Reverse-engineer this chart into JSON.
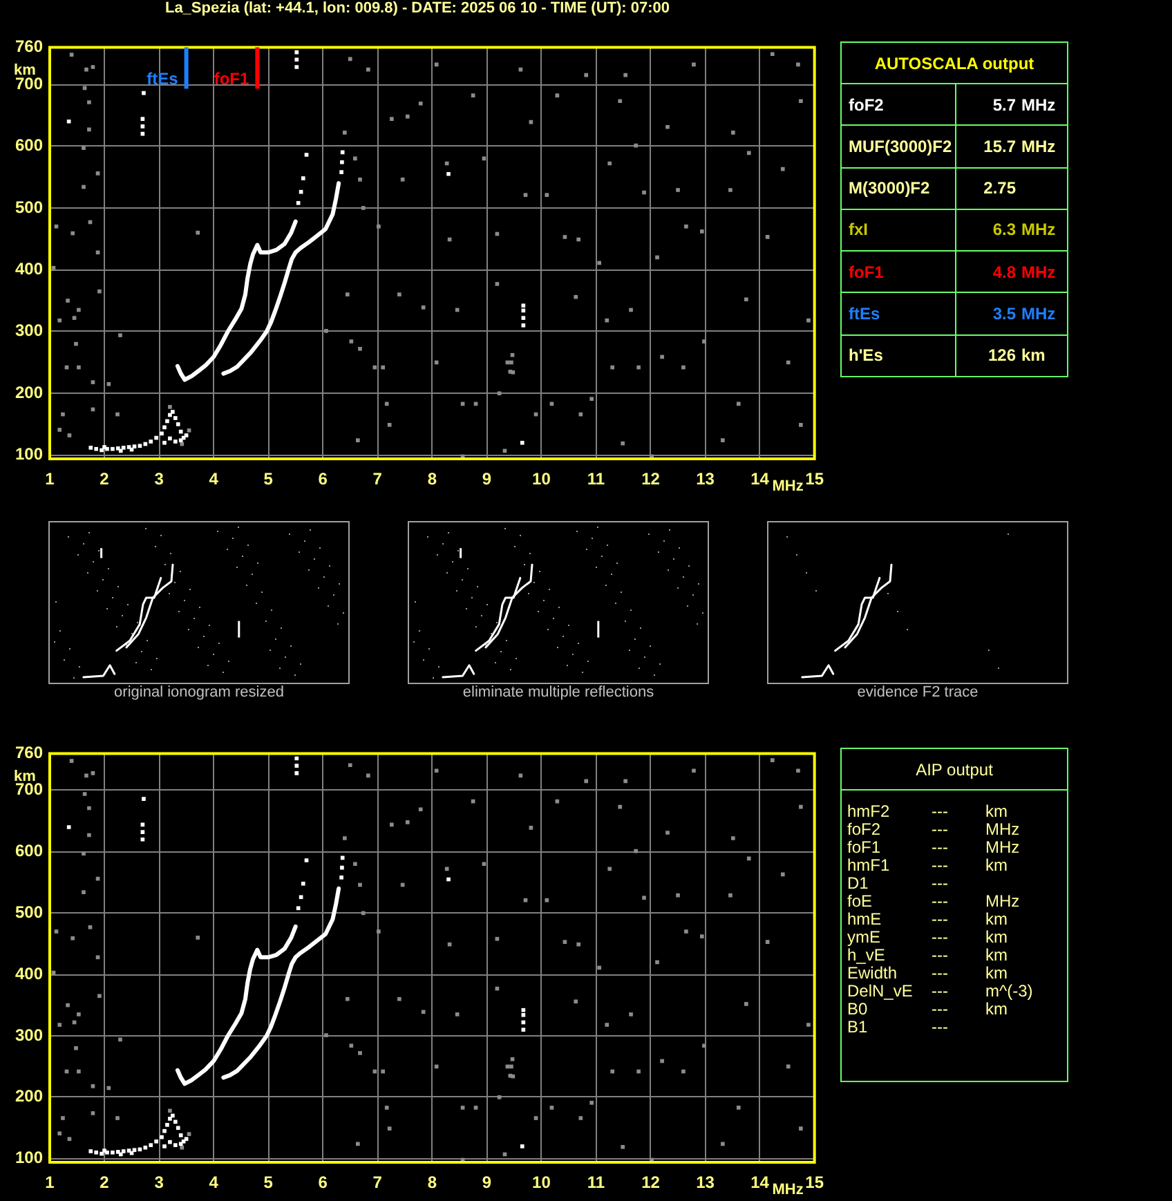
{
  "chart_data": [
    {
      "type": "scatter",
      "title": "La_Spezia (lat: +44.1, lon: 009.8) - DATE: 2025 06 10 - TIME (UT): 07:00",
      "xlabel": "MHz",
      "ylabel": "km",
      "xlim": [
        1,
        15
      ],
      "ylim": [
        94,
        760
      ],
      "xticks": [
        1,
        2,
        3,
        4,
        5,
        6,
        7,
        8,
        9,
        10,
        11,
        12,
        13,
        14,
        15
      ],
      "yticks": [
        100,
        200,
        300,
        400,
        500,
        600,
        700,
        760
      ],
      "grid": true,
      "marker": "square",
      "ref_lines": [
        {
          "axis": "x",
          "value": 3.5,
          "label": "ftEs",
          "color": "#1e7fff"
        },
        {
          "axis": "x",
          "value": 4.8,
          "label": "foF1",
          "color": "#ff0000"
        }
      ],
      "series": [
        {
          "type": "line",
          "marker": "none",
          "color": "#ffffff",
          "x": [
            3.34,
            3.4,
            3.47,
            3.6,
            3.72,
            3.85,
            4.0,
            4.13,
            4.26,
            4.4,
            4.51,
            4.58,
            4.62,
            4.67,
            4.72,
            4.8,
            4.86,
            5.0,
            5.15,
            5.3,
            5.42,
            5.5
          ],
          "values": [
            244,
            232,
            222,
            228,
            236,
            245,
            259,
            278,
            300,
            320,
            337,
            360,
            386,
            409,
            425,
            440,
            428,
            428,
            432,
            442,
            460,
            478
          ]
        },
        {
          "type": "line",
          "marker": "none",
          "color": "#ffffff",
          "x": [
            4.18,
            4.3,
            4.43,
            4.55,
            4.68,
            4.85,
            4.97,
            5.05,
            5.13,
            5.22,
            5.3,
            5.37,
            5.43,
            5.5,
            5.59,
            5.75,
            5.88,
            6.05,
            6.18,
            6.24,
            6.29
          ],
          "values": [
            232,
            236,
            243,
            254,
            266,
            285,
            300,
            315,
            334,
            357,
            379,
            400,
            417,
            428,
            435,
            445,
            454,
            466,
            490,
            515,
            540
          ]
        },
        {
          "color": "#ffffff",
          "x": [
            1.75,
            1.85,
            1.95,
            2.05,
            2.15,
            2.25,
            2.35,
            2.45,
            2.55,
            2.65,
            2.75,
            2.85,
            2.95,
            3.05,
            3.1,
            3.15,
            3.2,
            3.25,
            3.3,
            3.35,
            3.4,
            3.45,
            3.3,
            3.2,
            3.1,
            3.4,
            3.5,
            2.0,
            2.3,
            2.5,
            2.7,
            2.7,
            2.7,
            5.52,
            5.52,
            5.52,
            5.55,
            5.6,
            5.64,
            5.7,
            6.34,
            6.35,
            6.36,
            9.67,
            9.67,
            9.67,
            9.67,
            9.65,
            1.35,
            2.72,
            8.3
          ],
          "values": [
            112,
            110,
            108,
            110,
            110,
            111,
            112,
            113,
            114,
            115,
            118,
            122,
            128,
            135,
            145,
            155,
            165,
            170,
            160,
            150,
            138,
            128,
            122,
            127,
            120,
            124,
            132,
            113,
            107,
            109,
            620,
            632,
            644,
            728,
            740,
            752,
            508,
            526,
            548,
            586,
            558,
            574,
            590,
            310,
            322,
            334,
            342,
            120,
            640,
            686,
            555
          ]
        },
        {
          "color": "#8c8c8c",
          "x": [
            1.4,
            1.67,
            1.79,
            1.64,
            1.72,
            1.72,
            1.62,
            1.88,
            1.62,
            1.74,
            1.88,
            1.12,
            1.42,
            1.07,
            1.91,
            1.33,
            1.53,
            1.45,
            1.18,
            1.48,
            1.31,
            1.53,
            1.79,
            2.08,
            1.24,
            1.18,
            1.36,
            1.79,
            2.24,
            3.71,
            2.29,
            6.4,
            6.59,
            6.68,
            6.74,
            6.45,
            6.52,
            6.68,
            6.95,
            7.1,
            6.64,
            6.5,
            6.83,
            7.22,
            7.02,
            7.26,
            7.55,
            7.79,
            8.08,
            7.46,
            7.4,
            7.84,
            8.08,
            8.27,
            8.32,
            8.46,
            8.56,
            8.8,
            8.56,
            8.75,
            8.95,
            9.19,
            9.19,
            9.23,
            9.38,
            9.48,
            9.33,
            9.62,
            9.81,
            10.29,
            10.43,
            10.68,
            10.1,
            10.19,
            10.63,
            10.72,
            10.82,
            11.06,
            11.2,
            11.25,
            11.3,
            11.49,
            11.54,
            11.64,
            11.73,
            11.78,
            11.88,
            12.02,
            12.12,
            12.21,
            12.31,
            12.5,
            12.6,
            12.65,
            12.79,
            12.94,
            12.98,
            13.32,
            13.51,
            13.46,
            13.75,
            13.8,
            14.14,
            14.23,
            14.42,
            14.52,
            14.7,
            14.75,
            14.75,
            14.89,
            13.61,
            11.44,
            10.92,
            9.9,
            7.17,
            9.71,
            6.06,
            3.2,
            3.55,
            3.42,
            9.43,
            9.45,
            9.47
          ],
          "values": [
            748,
            724,
            728,
            694,
            671,
            627,
            597,
            556,
            534,
            477,
            428,
            470,
            459,
            403,
            365,
            350,
            335,
            322,
            318,
            280,
            242,
            242,
            218,
            215,
            166,
            141,
            132,
            174,
            166,
            460,
            294,
            622,
            580,
            546,
            500,
            360,
            284,
            272,
            242,
            242,
            124,
            741,
            724,
            149,
            470,
            644,
            648,
            669,
            732,
            546,
            360,
            339,
            250,
            572,
            449,
            335,
            183,
            183,
            98,
            682,
            580,
            458,
            377,
            200,
            250,
            234,
            107,
            724,
            639,
            682,
            453,
            449,
            521,
            183,
            356,
            166,
            715,
            411,
            318,
            572,
            242,
            119,
            715,
            335,
            601,
            242,
            525,
            98,
            420,
            259,
            631,
            529,
            242,
            470,
            732,
            462,
            284,
            124,
            622,
            529,
            352,
            589,
            453,
            749,
            563,
            250,
            732,
            673,
            149,
            318,
            183,
            673,
            191,
            166,
            183,
            521,
            301,
            178,
            140,
            118,
            235,
            250,
            262
          ]
        }
      ]
    },
    {
      "type": "other",
      "title": "AUTOSCALA output",
      "annotations": [
        "foF2 5.7 MHz",
        "MUF(3000)F2 15.7 MHz",
        "M(3000)F2 2.75",
        "fxI 6.3 MHz",
        "foF1 4.8 MHz",
        "ftEs 3.5 MHz",
        "h'Es 126 km"
      ],
      "colors": [
        "#ffffff",
        "#ffff99",
        "#ffff99",
        "#c8c800",
        "#ff0000",
        "#1e7fff",
        "#ffff99"
      ]
    },
    {
      "type": "other",
      "annotations": [
        "original ionogram resized",
        "eliminate multiple reflections",
        "evidence F2 trace"
      ]
    },
    {
      "type": "scatter",
      "xlabel": "MHz",
      "ylabel": "km",
      "xlim": [
        1,
        15
      ],
      "ylim": [
        94,
        760
      ],
      "xticks": [
        1,
        2,
        3,
        4,
        5,
        6,
        7,
        8,
        9,
        10,
        11,
        12,
        13,
        14,
        15
      ],
      "yticks": [
        100,
        200,
        300,
        400,
        500,
        600,
        700,
        760
      ],
      "grid": true,
      "marker": "square",
      "series": [
        {
          "type": "line",
          "marker": "none",
          "color": "#ffffff",
          "x": [
            3.34,
            3.4,
            3.47,
            3.6,
            3.72,
            3.85,
            4.0,
            4.13,
            4.26,
            4.4,
            4.51,
            4.58,
            4.62,
            4.67,
            4.72,
            4.8,
            4.86,
            5.0,
            5.15,
            5.3,
            5.42,
            5.5
          ],
          "values": [
            244,
            232,
            222,
            228,
            236,
            245,
            259,
            278,
            300,
            320,
            337,
            360,
            386,
            409,
            425,
            440,
            428,
            428,
            432,
            442,
            460,
            478
          ]
        },
        {
          "type": "line",
          "marker": "none",
          "color": "#ffffff",
          "x": [
            4.18,
            4.3,
            4.43,
            4.55,
            4.68,
            4.85,
            4.97,
            5.05,
            5.13,
            5.22,
            5.3,
            5.37,
            5.43,
            5.5,
            5.59,
            5.75,
            5.88,
            6.05,
            6.18,
            6.24,
            6.29
          ],
          "values": [
            232,
            236,
            243,
            254,
            266,
            285,
            300,
            315,
            334,
            357,
            379,
            400,
            417,
            428,
            435,
            445,
            454,
            466,
            490,
            515,
            540
          ]
        },
        {
          "color": "#ffffff",
          "x": [
            1.75,
            1.85,
            1.95,
            2.05,
            2.15,
            2.25,
            2.35,
            2.45,
            2.55,
            2.65,
            2.75,
            2.85,
            2.95,
            3.05,
            3.1,
            3.15,
            3.2,
            3.25,
            3.3,
            3.35,
            3.4,
            3.45,
            3.3,
            3.2,
            3.1,
            3.4,
            3.5,
            2.0,
            2.3,
            2.5,
            2.7,
            2.7,
            2.7,
            5.52,
            5.52,
            5.52,
            5.55,
            5.6,
            5.64,
            5.7,
            6.34,
            6.35,
            6.36,
            9.67,
            9.67,
            9.67,
            9.67,
            9.65,
            1.35,
            2.72,
            8.3
          ],
          "values": [
            112,
            110,
            108,
            110,
            110,
            111,
            112,
            113,
            114,
            115,
            118,
            122,
            128,
            135,
            145,
            155,
            165,
            170,
            160,
            150,
            138,
            128,
            122,
            127,
            120,
            124,
            132,
            113,
            107,
            109,
            620,
            632,
            644,
            728,
            740,
            752,
            508,
            526,
            548,
            586,
            558,
            574,
            590,
            310,
            322,
            334,
            342,
            120,
            640,
            686,
            555
          ]
        },
        {
          "color": "#8c8c8c",
          "x": [
            1.4,
            1.67,
            1.79,
            1.64,
            1.72,
            1.72,
            1.62,
            1.88,
            1.62,
            1.74,
            1.88,
            1.12,
            1.42,
            1.07,
            1.91,
            1.33,
            1.53,
            1.45,
            1.18,
            1.48,
            1.31,
            1.53,
            1.79,
            2.08,
            1.24,
            1.18,
            1.36,
            1.79,
            2.24,
            3.71,
            2.29,
            6.4,
            6.59,
            6.68,
            6.74,
            6.45,
            6.52,
            6.68,
            6.95,
            7.1,
            6.64,
            6.5,
            6.83,
            7.22,
            7.02,
            7.26,
            7.55,
            7.79,
            8.08,
            7.46,
            7.4,
            7.84,
            8.08,
            8.27,
            8.32,
            8.46,
            8.56,
            8.8,
            8.56,
            8.75,
            8.95,
            9.19,
            9.19,
            9.23,
            9.38,
            9.48,
            9.33,
            9.62,
            9.81,
            10.29,
            10.43,
            10.68,
            10.1,
            10.19,
            10.63,
            10.72,
            10.82,
            11.06,
            11.2,
            11.25,
            11.3,
            11.49,
            11.54,
            11.64,
            11.73,
            11.78,
            11.88,
            12.02,
            12.12,
            12.21,
            12.31,
            12.5,
            12.6,
            12.65,
            12.79,
            12.94,
            12.98,
            13.32,
            13.51,
            13.46,
            13.75,
            13.8,
            14.14,
            14.23,
            14.42,
            14.52,
            14.7,
            14.75,
            14.75,
            14.89,
            13.61,
            11.44,
            10.92,
            9.9,
            7.17,
            9.71,
            6.06,
            3.2,
            3.55,
            3.42,
            9.43,
            9.45,
            9.47
          ],
          "values": [
            748,
            724,
            728,
            694,
            671,
            627,
            597,
            556,
            534,
            477,
            428,
            470,
            459,
            403,
            365,
            350,
            335,
            322,
            318,
            280,
            242,
            242,
            218,
            215,
            166,
            141,
            132,
            174,
            166,
            460,
            294,
            622,
            580,
            546,
            500,
            360,
            284,
            272,
            242,
            242,
            124,
            741,
            724,
            149,
            470,
            644,
            648,
            669,
            732,
            546,
            360,
            339,
            250,
            572,
            449,
            335,
            183,
            183,
            98,
            682,
            580,
            458,
            377,
            200,
            250,
            234,
            107,
            724,
            639,
            682,
            453,
            449,
            521,
            183,
            356,
            166,
            715,
            411,
            318,
            572,
            242,
            119,
            715,
            335,
            601,
            242,
            525,
            98,
            420,
            259,
            631,
            529,
            242,
            470,
            732,
            462,
            284,
            124,
            622,
            529,
            352,
            589,
            453,
            749,
            563,
            250,
            732,
            673,
            149,
            318,
            183,
            673,
            191,
            166,
            183,
            521,
            301,
            178,
            140,
            118,
            235,
            250,
            262
          ]
        }
      ]
    },
    {
      "type": "other",
      "title": "AIP output",
      "color": "#ffff99",
      "annotations": [
        "hmF2 --- km",
        "foF2 --- MHz",
        "foF1 --- MHz",
        "hmF1 --- km",
        "D1 ---",
        "foE --- MHz",
        "hmE --- km",
        "ymE --- km",
        "h_vE --- km",
        "Ewidth --- km",
        "DelN_vE --- m^(-3)",
        "B0 --- km",
        "B1 ---"
      ]
    }
  ]
}
